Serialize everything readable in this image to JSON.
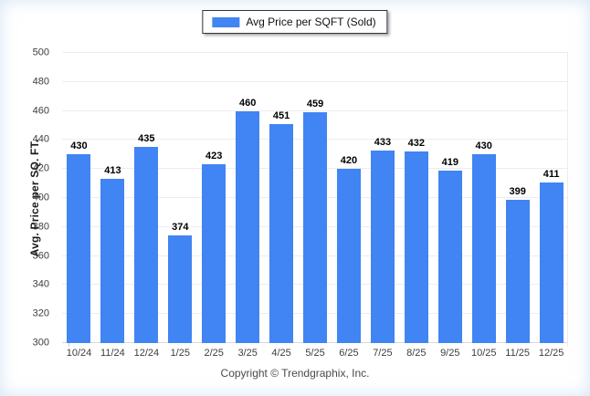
{
  "legend": {
    "label": "Avg Price per SQFT (Sold)"
  },
  "y_axis": {
    "title": "Avg. Price per SQ. FT."
  },
  "footer": {
    "copyright": "Copyright © Trendgraphix, Inc."
  },
  "colors": {
    "bar": "#4184F3",
    "gridline": "#ededed",
    "legend_border": "#2b3440",
    "axis_text": "#3d3d3d"
  },
  "chart_data": {
    "type": "bar",
    "title": "",
    "series_name": "Avg Price per SQFT (Sold)",
    "categories": [
      "10/24",
      "11/24",
      "12/24",
      "1/25",
      "2/25",
      "3/25",
      "4/25",
      "5/25",
      "6/25",
      "7/25",
      "8/25",
      "9/25",
      "10/25",
      "11/25",
      "12/25"
    ],
    "values": [
      430,
      413,
      435,
      374,
      423,
      460,
      451,
      459,
      420,
      433,
      432,
      419,
      430,
      399,
      411
    ],
    "xlabel": "",
    "ylabel": "Avg. Price per SQ. FT.",
    "ylim": [
      300,
      500
    ],
    "ytick_step": 20,
    "grid": "horizontal",
    "legend_position": "top-center",
    "value_labels": true,
    "bar_color": "#4184F3"
  }
}
